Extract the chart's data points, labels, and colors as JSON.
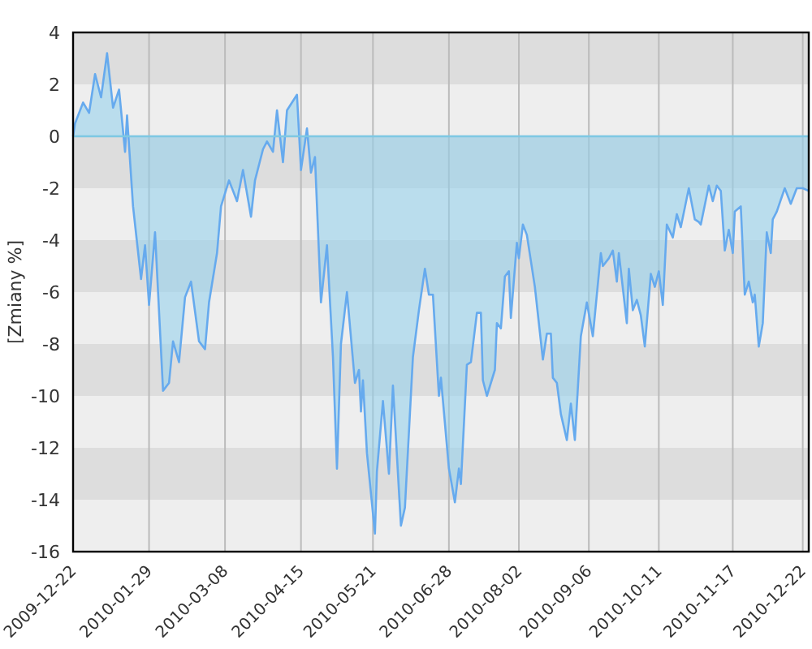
{
  "chart_data": {
    "type": "area",
    "ylabel": "[Zmiany %]",
    "x": [
      "2009-12-22",
      "2009-12-23",
      "2009-12-25",
      "2009-12-27",
      "2009-12-30",
      "2010-01-02",
      "2010-01-05",
      "2010-01-08",
      "2010-01-11",
      "2010-01-14",
      "2010-01-17",
      "2010-01-18",
      "2010-01-21",
      "2010-01-25",
      "2010-01-27",
      "2010-01-29",
      "2010-02-01",
      "2010-02-05",
      "2010-02-08",
      "2010-02-10",
      "2010-02-13",
      "2010-02-16",
      "2010-02-19",
      "2010-02-23",
      "2010-02-26",
      "2010-02-28",
      "2010-03-04",
      "2010-03-06",
      "2010-03-10",
      "2010-03-14",
      "2010-03-17",
      "2010-03-21",
      "2010-03-23",
      "2010-03-27",
      "2010-03-29",
      "2010-04-01",
      "2010-04-03",
      "2010-04-06",
      "2010-04-08",
      "2010-04-13",
      "2010-04-15",
      "2010-04-18",
      "2010-04-20",
      "2010-04-22",
      "2010-04-25",
      "2010-04-28",
      "2010-05-01",
      "2010-05-03",
      "2010-05-05",
      "2010-05-08",
      "2010-05-12",
      "2010-05-14",
      "2010-05-15",
      "2010-05-16",
      "2010-05-18",
      "2010-05-22",
      "2010-05-23",
      "2010-05-26",
      "2010-05-29",
      "2010-05-31",
      "2010-06-04",
      "2010-06-06",
      "2010-06-10",
      "2010-06-13",
      "2010-06-16",
      "2010-06-18",
      "2010-06-20",
      "2010-06-23",
      "2010-06-24",
      "2010-06-28",
      "2010-07-01",
      "2010-07-03",
      "2010-07-04",
      "2010-07-07",
      "2010-07-09",
      "2010-07-12",
      "2010-07-14",
      "2010-07-15",
      "2010-07-17",
      "2010-07-21",
      "2010-07-22",
      "2010-07-24",
      "2010-07-26",
      "2010-07-28",
      "2010-07-29",
      "2010-08-01",
      "2010-08-02",
      "2010-08-04",
      "2010-08-06",
      "2010-08-10",
      "2010-08-12",
      "2010-08-14",
      "2010-08-16",
      "2010-08-18",
      "2010-08-19",
      "2010-08-21",
      "2010-08-23",
      "2010-08-26",
      "2010-08-28",
      "2010-08-30",
      "2010-09-02",
      "2010-09-05",
      "2010-09-08",
      "2010-09-12",
      "2010-09-13",
      "2010-09-16",
      "2010-09-18",
      "2010-09-20",
      "2010-09-21",
      "2010-09-25",
      "2010-09-26",
      "2010-09-28",
      "2010-09-30",
      "2010-10-02",
      "2010-10-04",
      "2010-10-07",
      "2010-10-09",
      "2010-10-11",
      "2010-10-13",
      "2010-10-15",
      "2010-10-18",
      "2010-10-20",
      "2010-10-22",
      "2010-10-26",
      "2010-10-29",
      "2010-10-31",
      "2010-11-01",
      "2010-11-05",
      "2010-11-07",
      "2010-11-09",
      "2010-11-11",
      "2010-11-13",
      "2010-11-15",
      "2010-11-17",
      "2010-11-18",
      "2010-11-21",
      "2010-11-23",
      "2010-11-25",
      "2010-11-27",
      "2010-11-28",
      "2010-11-30",
      "2010-12-02",
      "2010-12-04",
      "2010-12-06",
      "2010-12-07",
      "2010-12-09",
      "2010-12-13",
      "2010-12-16",
      "2010-12-19",
      "2010-12-22",
      "2010-12-25"
    ],
    "series": [
      {
        "color": "#66aaee",
        "values": [
          0,
          0.5,
          0.9,
          1.3,
          0.9,
          2.4,
          1.5,
          3.2,
          1.1,
          1.8,
          -0.6,
          0.8,
          -2.7,
          -5.5,
          -4.2,
          -6.5,
          -3.7,
          -9.8,
          -9.5,
          -7.9,
          -8.7,
          -6.2,
          -5.6,
          -7.9,
          -8.2,
          -6.4,
          -4.5,
          -2.7,
          -1.7,
          -2.5,
          -1.3,
          -3.1,
          -1.7,
          -0.5,
          -0.2,
          -0.6,
          1,
          -1,
          1,
          1.6,
          -1.3,
          0.3,
          -1.4,
          -0.8,
          -6.4,
          -4.2,
          -8.5,
          -12.8,
          -8,
          -6,
          -9.5,
          -9,
          -10.6,
          -9.4,
          -12.2,
          -15.3,
          -12.9,
          -10.2,
          -13,
          -9.6,
          -15,
          -14.3,
          -8.5,
          -6.7,
          -5.1,
          -6.1,
          -6.1,
          -10,
          -9.3,
          -12.8,
          -14.1,
          -12.8,
          -13.4,
          -8.8,
          -8.7,
          -6.8,
          -6.8,
          -9.4,
          -10,
          -9,
          -7.2,
          -7.4,
          -5.4,
          -5.2,
          -7,
          -4.1,
          -4.7,
          -3.4,
          -3.8,
          -5.8,
          -7.2,
          -8.6,
          -7.6,
          -7.6,
          -9.3,
          -9.5,
          -10.7,
          -11.7,
          -10.3,
          -11.7,
          -7.7,
          -6.4,
          -7.7,
          -4.5,
          -5,
          -4.7,
          -4.4,
          -5.6,
          -4.5,
          -7.2,
          -5.1,
          -6.7,
          -6.3,
          -6.9,
          -8.1,
          -5.3,
          -5.8,
          -5.2,
          -6.5,
          -3.4,
          -3.9,
          -3,
          -3.5,
          -2,
          -3.2,
          -3.3,
          -3.4,
          -1.9,
          -2.5,
          -1.9,
          -2.1,
          -4.4,
          -3.6,
          -4.5,
          -2.9,
          -2.7,
          -6.1,
          -5.6,
          -6.4,
          -6.1,
          -8.1,
          -7.2,
          -3.7,
          -4.5,
          -3.2,
          -2.9,
          -2,
          -2.6,
          -2,
          -2,
          -2.1
        ]
      }
    ],
    "xlim": [
      "2009-12-22",
      "2010-12-25"
    ],
    "xticks": [
      "2009-12-22",
      "2010-01-29",
      "2010-03-08",
      "2010-04-15",
      "2010-05-21",
      "2010-06-28",
      "2010-08-02",
      "2010-09-06",
      "2010-10-11",
      "2010-11-17",
      "2010-12-22"
    ],
    "ylim": [
      -16,
      4
    ],
    "yticks": [
      -16,
      -14,
      -12,
      -10,
      -8,
      -6,
      -4,
      -2,
      0,
      2,
      4
    ],
    "grid": true,
    "ref_lines": [
      {
        "axis": "y",
        "value": 0,
        "color": "#7ec8e3"
      }
    ]
  }
}
